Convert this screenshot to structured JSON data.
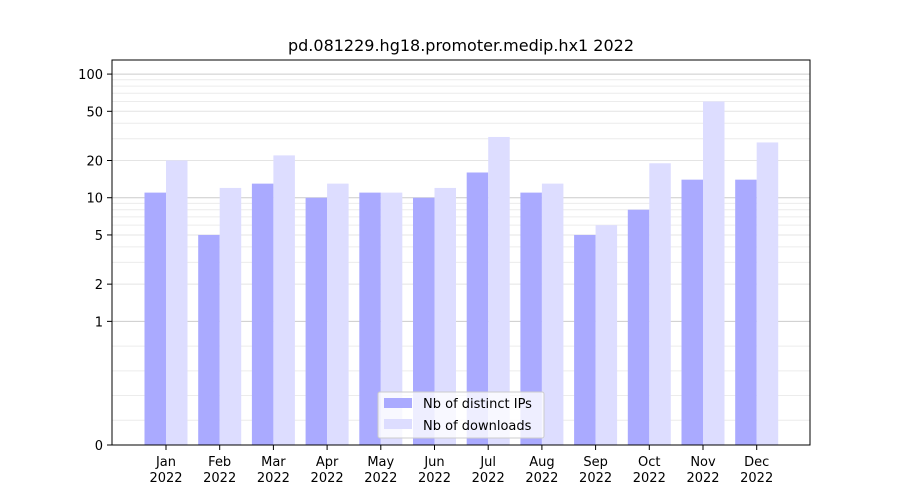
{
  "chart_data": {
    "type": "bar",
    "title": "pd.081229.hg18.promoter.medip.hx1 2022",
    "xlabel": "",
    "ylabel": "",
    "y_scale": "symlog",
    "y_ticks": [
      0,
      1,
      2,
      5,
      10,
      20,
      50,
      100
    ],
    "ylim": [
      0,
      130
    ],
    "grid": true,
    "legend_position": "bottom-center",
    "categories": [
      [
        "Jan",
        "2022"
      ],
      [
        "Feb",
        "2022"
      ],
      [
        "Mar",
        "2022"
      ],
      [
        "Apr",
        "2022"
      ],
      [
        "May",
        "2022"
      ],
      [
        "Jun",
        "2022"
      ],
      [
        "Jul",
        "2022"
      ],
      [
        "Aug",
        "2022"
      ],
      [
        "Sep",
        "2022"
      ],
      [
        "Oct",
        "2022"
      ],
      [
        "Nov",
        "2022"
      ],
      [
        "Dec",
        "2022"
      ]
    ],
    "series": [
      {
        "name": "Nb of distinct IPs",
        "color": "#aaaaff",
        "values": [
          11,
          5,
          13,
          10,
          11,
          10,
          16,
          11,
          5,
          8,
          14,
          14
        ]
      },
      {
        "name": "Nb of downloads",
        "color": "#ddddff",
        "values": [
          20,
          12,
          22,
          13,
          11,
          12,
          31,
          13,
          6,
          19,
          60,
          28
        ]
      }
    ]
  }
}
